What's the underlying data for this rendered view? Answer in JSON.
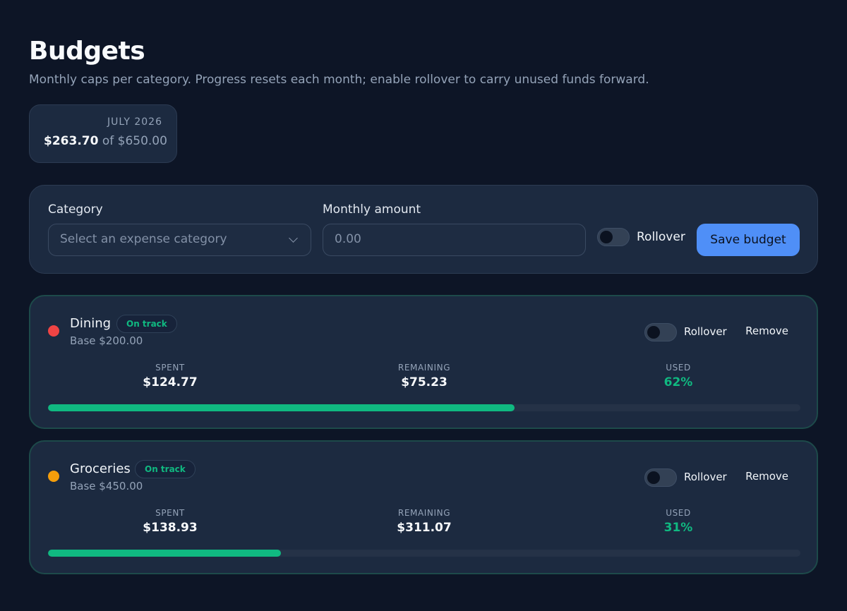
{
  "header": {
    "title": "Budgets",
    "subtitle": "Monthly caps per category. Progress resets each month; enable rollover to carry unused funds forward."
  },
  "summary": {
    "month": "JULY 2026",
    "spent": "$263.70",
    "of_text": "of $650.00"
  },
  "form": {
    "category_label": "Category",
    "category_placeholder": "Select an expense category",
    "amount_label": "Monthly amount",
    "amount_placeholder": "0.00",
    "rollover_label": "Rollover",
    "rollover_on": false,
    "save_label": "Save budget"
  },
  "budgets": [
    {
      "name": "Dining",
      "dot_color": "#ef4444",
      "status": "On track",
      "base": "Base $200.00",
      "rollover_label": "Rollover",
      "rollover_on": false,
      "remove_label": "Remove",
      "spent_label": "SPENT",
      "spent": "$124.77",
      "remaining_label": "REMAINING",
      "remaining": "$75.23",
      "used_label": "USED",
      "used": "62%",
      "progress": 0.62
    },
    {
      "name": "Groceries",
      "dot_color": "#f59e0b",
      "status": "On track",
      "base": "Base $450.00",
      "rollover_label": "Rollover",
      "rollover_on": false,
      "remove_label": "Remove",
      "spent_label": "SPENT",
      "spent": "$138.93",
      "remaining_label": "REMAINING",
      "remaining": "$311.07",
      "used_label": "USED",
      "used": "31%",
      "progress": 0.31
    }
  ],
  "colors": {
    "accent": "#4f8ff7",
    "success": "#10b981",
    "background": "#0d1526"
  }
}
